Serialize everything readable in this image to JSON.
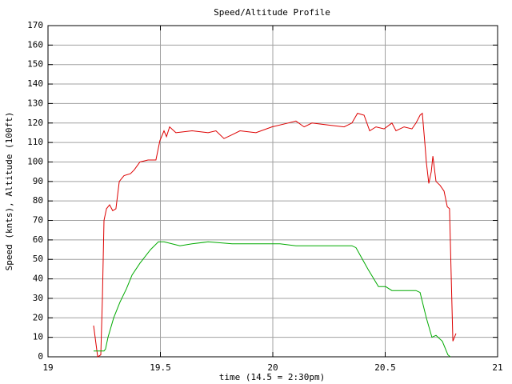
{
  "chart_data": {
    "type": "line",
    "title": "Speed/Altitude Profile",
    "x_label": "time (14.5 = 2:30pm)",
    "y_label": "Speed (knts), Altitude (100ft)",
    "xlim": [
      19,
      21
    ],
    "xticks": [
      19,
      19.5,
      20,
      20.5,
      21
    ],
    "ylim": [
      0,
      170
    ],
    "yticks": [
      0,
      10,
      20,
      30,
      40,
      50,
      60,
      70,
      80,
      90,
      100,
      110,
      120,
      130,
      140,
      150,
      160,
      170
    ],
    "grid": true,
    "series": [
      {
        "color": "#dd0000",
        "x": [
          19.203,
          19.221,
          19.235,
          19.242,
          19.249,
          19.26,
          19.274,
          19.288,
          19.302,
          19.317,
          19.338,
          19.367,
          19.384,
          19.409,
          19.445,
          19.48,
          19.498,
          19.516,
          19.527,
          19.541,
          19.569,
          19.641,
          19.712,
          19.747,
          19.783,
          19.819,
          19.854,
          19.925,
          19.996,
          20.068,
          20.103,
          20.139,
          20.174,
          20.246,
          20.317,
          20.352,
          20.377,
          20.406,
          20.431,
          20.459,
          20.495,
          20.53,
          20.548,
          20.584,
          20.619,
          20.637,
          20.655,
          20.665,
          20.676,
          20.683,
          20.694,
          20.705,
          20.712,
          20.726,
          20.744,
          20.762,
          20.776,
          20.786,
          20.794,
          20.801,
          20.815
        ],
        "values": [
          16,
          0,
          1,
          30,
          70,
          76,
          78,
          75,
          76,
          90,
          93,
          94,
          96,
          100,
          101,
          101,
          111,
          116,
          113,
          118,
          115,
          116,
          115,
          116,
          112,
          114,
          116,
          115,
          118,
          120,
          121,
          118,
          120,
          119,
          118,
          120,
          125,
          124,
          116,
          118,
          117,
          120,
          116,
          118,
          117,
          120,
          124,
          125,
          110,
          100,
          89,
          95,
          103,
          90,
          88,
          85,
          77,
          76,
          40,
          8,
          12
        ]
      },
      {
        "color": "#00aa00",
        "x": [
          19.203,
          19.249,
          19.256,
          19.267,
          19.292,
          19.32,
          19.349,
          19.374,
          19.409,
          19.456,
          19.491,
          19.516,
          19.587,
          19.641,
          19.712,
          19.819,
          19.961,
          20.032,
          20.103,
          20.21,
          20.352,
          20.37,
          20.423,
          20.47,
          20.502,
          20.53,
          20.637,
          20.655,
          20.683,
          20.708,
          20.726,
          20.754,
          20.779,
          20.79
        ],
        "values": [
          3,
          3,
          4,
          10,
          20,
          28,
          35,
          42,
          48,
          55,
          59,
          59,
          57,
          58,
          59,
          58,
          58,
          58,
          57,
          57,
          57,
          56,
          45,
          36,
          36,
          34,
          34,
          33,
          20,
          10,
          11,
          8,
          1,
          0
        ]
      }
    ]
  }
}
